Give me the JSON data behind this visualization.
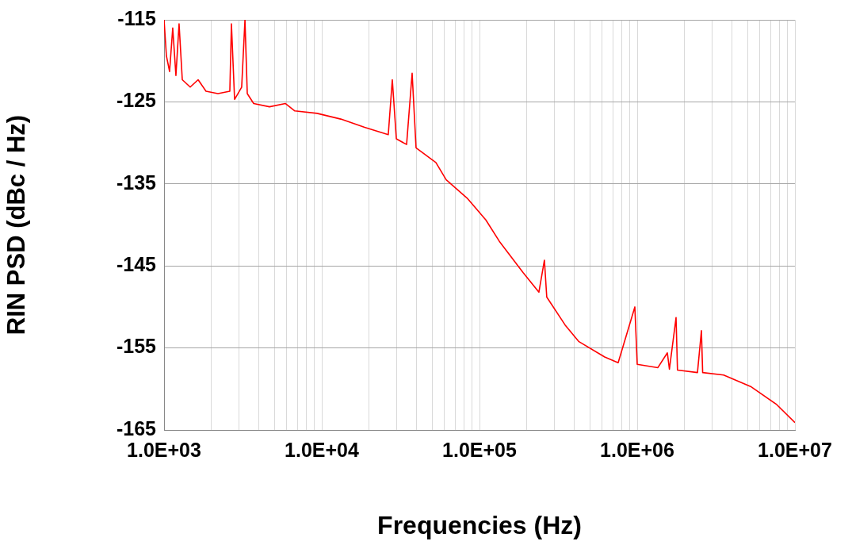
{
  "chart_data": {
    "type": "line",
    "xlabel": "Frequencies (Hz)",
    "ylabel": "RIN PSD (dBc / Hz)",
    "log": "x",
    "xlim": [
      1000,
      10000000
    ],
    "ylim": [
      -165,
      -115
    ],
    "xticks": [
      {
        "value": 1000,
        "label": "1.0E+03"
      },
      {
        "value": 2000,
        "label": null
      },
      {
        "value": 3000,
        "label": null
      },
      {
        "value": 4000,
        "label": null
      },
      {
        "value": 5000,
        "label": null
      },
      {
        "value": 6000,
        "label": null
      },
      {
        "value": 7000,
        "label": null
      },
      {
        "value": 8000,
        "label": null
      },
      {
        "value": 9000,
        "label": null
      },
      {
        "value": 10000,
        "label": "1.0E+04"
      },
      {
        "value": 20000,
        "label": null
      },
      {
        "value": 30000,
        "label": null
      },
      {
        "value": 40000,
        "label": null
      },
      {
        "value": 50000,
        "label": null
      },
      {
        "value": 60000,
        "label": null
      },
      {
        "value": 70000,
        "label": null
      },
      {
        "value": 80000,
        "label": null
      },
      {
        "value": 90000,
        "label": null
      },
      {
        "value": 100000,
        "label": "1.0E+05"
      },
      {
        "value": 200000,
        "label": null
      },
      {
        "value": 300000,
        "label": null
      },
      {
        "value": 400000,
        "label": null
      },
      {
        "value": 500000,
        "label": null
      },
      {
        "value": 600000,
        "label": null
      },
      {
        "value": 700000,
        "label": null
      },
      {
        "value": 800000,
        "label": null
      },
      {
        "value": 900000,
        "label": null
      },
      {
        "value": 1000000,
        "label": "1.0E+06"
      },
      {
        "value": 2000000,
        "label": null
      },
      {
        "value": 3000000,
        "label": null
      },
      {
        "value": 4000000,
        "label": null
      },
      {
        "value": 5000000,
        "label": null
      },
      {
        "value": 6000000,
        "label": null
      },
      {
        "value": 7000000,
        "label": null
      },
      {
        "value": 8000000,
        "label": null
      },
      {
        "value": 9000000,
        "label": null
      },
      {
        "value": 10000000,
        "label": "1.0E+07"
      }
    ],
    "yticks": [
      -165,
      -155,
      -145,
      -135,
      -125,
      -115
    ],
    "grid": true,
    "legend": false,
    "marker": "none",
    "line_style": "solid",
    "series": [
      {
        "color": "#ff0000",
        "x": [
          1000,
          1035,
          1084,
          1135,
          1189,
          1245,
          1305,
          1465,
          1644,
          1845,
          2196,
          2612,
          2674,
          2800,
          3105,
          3258,
          3370,
          3700,
          4660,
          5870,
          6745,
          9330,
          13200,
          18700,
          26400,
          28000,
          29700,
          34500,
          37400,
          39600,
          52900,
          61500,
          84100,
          109700,
          133600,
          188800,
          238000,
          258000,
          267000,
          349000,
          425000,
          622000,
          757000,
          966000,
          1000000,
          1352000,
          1553000,
          1600000,
          1763000,
          1800000,
          2410000,
          2553000,
          2600000,
          3532000,
          5236000,
          7660000,
          10000000
        ],
        "values": [
          -115,
          -119.4,
          -121.3,
          -116,
          -121.8,
          -115.5,
          -122.3,
          -123.2,
          -122.3,
          -123.7,
          -124,
          -123.7,
          -115.5,
          -124.7,
          -123.2,
          -115,
          -124,
          -125.2,
          -125.6,
          -125.2,
          -126.1,
          -126.4,
          -127.1,
          -128.1,
          -129,
          -122.3,
          -129.5,
          -130.2,
          -121.5,
          -130.6,
          -132.4,
          -134.5,
          -136.8,
          -139.4,
          -142,
          -145.8,
          -148.2,
          -144.3,
          -148.8,
          -152.2,
          -154.2,
          -156.1,
          -156.8,
          -150,
          -157,
          -157.4,
          -155.6,
          -157.6,
          -151.3,
          -157.7,
          -158,
          -152.9,
          -158,
          -158.3,
          -159.7,
          -161.9,
          -164.1
        ]
      }
    ]
  }
}
